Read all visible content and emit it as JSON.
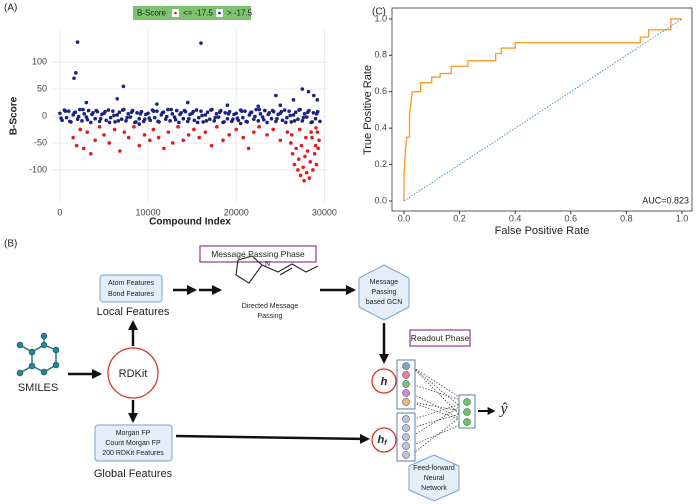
{
  "chart_data": [
    {
      "type": "scatter",
      "panel": "(A)",
      "x_label": "Compound Index",
      "y_label": "B-Score",
      "legend_title": "B-Score",
      "legend": "top",
      "grid": true,
      "xlim": [
        -900,
        30300
      ],
      "ylim": [
        -165,
        165
      ],
      "xticks": [
        0,
        10000,
        20000,
        30000
      ],
      "yticks": [
        -100,
        -50,
        0,
        50,
        100
      ],
      "series": [
        {
          "name": "<= -17.5",
          "color": "#e41a1c",
          "x": [
            1500,
            1900,
            2300,
            2700,
            3100,
            3500,
            4000,
            4500,
            5000,
            5600,
            6200,
            6800,
            7300,
            7800,
            8400,
            9000,
            9600,
            10200,
            10600,
            11200,
            11800,
            12300,
            12800,
            13400,
            14000,
            14600,
            15200,
            15800,
            16500,
            17200,
            17800,
            18500,
            19200,
            20000,
            20800,
            21400,
            22000,
            22600,
            23500,
            24200,
            25000,
            25800,
            26200,
            26400,
            26600,
            26800,
            27000,
            27100,
            27300,
            27400,
            27600,
            27700,
            27800,
            28000,
            28100,
            28300,
            28400,
            28600,
            28700,
            28900,
            29000,
            29100,
            29200,
            29300,
            29400,
            26300,
            27200,
            27900,
            28500,
            29050
          ],
          "values": [
            -40,
            -55,
            -25,
            -60,
            -30,
            -70,
            -45,
            -20,
            -35,
            -50,
            -25,
            -65,
            -30,
            -40,
            -20,
            -55,
            -35,
            -45,
            -25,
            -40,
            -60,
            -30,
            -50,
            -20,
            -45,
            -35,
            -25,
            -40,
            -30,
            -55,
            -20,
            -45,
            -35,
            -25,
            -40,
            -60,
            -30,
            -20,
            -35,
            -25,
            -45,
            -30,
            -50,
            -70,
            -90,
            -60,
            -100,
            -80,
            -110,
            -55,
            -95,
            -120,
            -75,
            -105,
            -65,
            -115,
            -85,
            -40,
            -100,
            -70,
            -55,
            -90,
            -30,
            -60,
            -45,
            -35,
            -25,
            -40,
            -30,
            -22
          ]
        },
        {
          "name": "> -17.5",
          "color": "#1a237e",
          "x": [
            0,
            250,
            500,
            750,
            1000,
            1250,
            1500,
            1750,
            2000,
            2250,
            2500,
            2750,
            3000,
            3250,
            3500,
            3750,
            4000,
            4250,
            4500,
            4750,
            5000,
            5250,
            5500,
            5750,
            6000,
            6250,
            6500,
            6750,
            7000,
            7250,
            7500,
            7750,
            8000,
            8250,
            8500,
            8750,
            9000,
            9250,
            9500,
            9750,
            10000,
            10250,
            10500,
            10750,
            11000,
            11250,
            11500,
            11750,
            12000,
            12250,
            12500,
            12750,
            13000,
            13250,
            13500,
            13750,
            14000,
            14250,
            14500,
            14750,
            15000,
            15250,
            15500,
            15750,
            16000,
            16250,
            16500,
            16750,
            17000,
            17250,
            17500,
            17750,
            18000,
            18250,
            18500,
            18750,
            19000,
            19250,
            19500,
            19750,
            20000,
            20250,
            20500,
            20750,
            21000,
            21250,
            21500,
            21750,
            22000,
            22250,
            22500,
            22750,
            23000,
            23250,
            23500,
            23750,
            24000,
            24250,
            24500,
            24750,
            25000,
            25250,
            25500,
            25750,
            26000,
            26250,
            26500,
            26750,
            27000,
            27250,
            27500,
            27750,
            28000,
            28250,
            28500,
            28750,
            29000,
            29250,
            29500,
            125,
            625,
            1125,
            1625,
            2125,
            2625,
            3125,
            3625,
            4125,
            4625,
            5125,
            5625,
            6125,
            6625,
            7125,
            7625,
            8125,
            8625,
            9125,
            9625,
            10125,
            10625,
            11125,
            11625,
            12125,
            12625,
            13125,
            13625,
            14125,
            14625,
            15125,
            15625,
            16125,
            16625,
            17125,
            17625,
            18125,
            18625,
            19125,
            19625,
            20125,
            20625,
            21125,
            21625,
            22125,
            22625,
            23125,
            23625,
            24125,
            24625,
            25125,
            25625,
            26125,
            26625,
            27125,
            27625,
            28125,
            28625,
            29125,
            1600,
            1800,
            2000,
            16000,
            7200,
            3000,
            6500,
            11000,
            14500,
            19000,
            22500,
            24500,
            26500,
            27500,
            28200,
            28800,
            29200,
            9000,
            20500,
            25000
          ],
          "values": [
            5,
            -8,
            11,
            -3,
            9,
            -11,
            2,
            7,
            -6,
            12,
            -9,
            4,
            -2,
            10,
            -12,
            6,
            -5,
            8,
            -10,
            3,
            5,
            -8,
            11,
            -3,
            9,
            -11,
            2,
            7,
            -6,
            12,
            -9,
            4,
            -2,
            10,
            -12,
            6,
            -5,
            8,
            -10,
            3,
            5,
            -8,
            11,
            -3,
            9,
            -11,
            2,
            7,
            -6,
            12,
            -9,
            4,
            -2,
            10,
            -12,
            6,
            -5,
            8,
            -10,
            3,
            5,
            -8,
            11,
            -3,
            9,
            -11,
            2,
            7,
            -6,
            12,
            -9,
            4,
            -2,
            10,
            -12,
            6,
            -5,
            8,
            -10,
            3,
            5,
            -8,
            11,
            -3,
            9,
            -11,
            2,
            7,
            -6,
            12,
            -9,
            4,
            -2,
            10,
            -12,
            6,
            -5,
            8,
            -10,
            3,
            5,
            -8,
            11,
            -3,
            9,
            -11,
            2,
            7,
            -6,
            12,
            -9,
            4,
            -2,
            10,
            -12,
            6,
            -5,
            8,
            -10,
            -4,
            9,
            -10,
            6,
            -1,
            12,
            -7,
            3,
            10,
            -5,
            8,
            -12,
            1,
            -9,
            11,
            -3,
            7,
            -11,
            4,
            -6,
            -4,
            9,
            -10,
            6,
            -1,
            12,
            -7,
            3,
            10,
            -5,
            8,
            -12,
            1,
            -9,
            11,
            -3,
            7,
            -11,
            4,
            -6,
            -4,
            9,
            -10,
            6,
            -1,
            12,
            -7,
            3,
            10,
            -5,
            8,
            -12,
            1,
            -9,
            11,
            -3,
            7,
            -11,
            4,
            70,
            80,
            137,
            135,
            55,
            25,
            32,
            22,
            25,
            20,
            18,
            38,
            30,
            50,
            45,
            38,
            30,
            -15,
            -14,
            20
          ]
        }
      ]
    },
    {
      "type": "line",
      "panel": "(C)",
      "x_label": "False Positive Rate",
      "y_label": "True Positive Rate",
      "annotation": "AUC=0.823",
      "grid": false,
      "xlim": [
        -0.043,
        1.036
      ],
      "ylim": [
        -0.055,
        1.06
      ],
      "xticks": [
        {
          "value": 0,
          "label": "0.0"
        },
        {
          "value": 0.2,
          "label": "0.2"
        },
        {
          "value": 0.4,
          "label": "0.4"
        },
        {
          "value": 0.6,
          "label": "0.6"
        },
        {
          "value": 0.8,
          "label": "0.8"
        },
        {
          "value": 1,
          "label": "1.0"
        }
      ],
      "yticks": [
        {
          "value": 0,
          "label": "0.0"
        },
        {
          "value": 0.2,
          "label": "0.2"
        },
        {
          "value": 0.4,
          "label": "0.4"
        },
        {
          "value": 0.6,
          "label": "0.6"
        },
        {
          "value": 0.8,
          "label": "0.8"
        },
        {
          "value": 1,
          "label": "1.0"
        }
      ],
      "series": [
        {
          "color": "#f59a23",
          "dash": false,
          "x": [
            0,
            0,
            0.005,
            0.01,
            0.02,
            0.02,
            0.03,
            0.06,
            0.06,
            0.1,
            0.1,
            0.13,
            0.13,
            0.17,
            0.17,
            0.23,
            0.23,
            0.33,
            0.33,
            0.35,
            0.35,
            0.4,
            0.4,
            0.85,
            0.85,
            0.88,
            0.88,
            0.96,
            0.96,
            1
          ],
          "values": [
            0,
            0.13,
            0.27,
            0.35,
            0.35,
            0.47,
            0.6,
            0.6,
            0.65,
            0.65,
            0.68,
            0.68,
            0.7,
            0.7,
            0.74,
            0.74,
            0.77,
            0.77,
            0.81,
            0.81,
            0.84,
            0.84,
            0.87,
            0.87,
            0.9,
            0.9,
            0.94,
            0.94,
            1,
            1
          ]
        },
        {
          "color": "#3b8bc2",
          "dash": true,
          "x": [
            0,
            1
          ],
          "values": [
            0,
            1
          ]
        }
      ]
    }
  ],
  "diagram": {
    "panel": "(B)",
    "message_passing_phase": "Message Passing Phase",
    "local_inputs": [
      "Atom Features",
      "Bond Features"
    ],
    "local_features": "Local Features",
    "molecule_atom": "N",
    "directed_message_passing": [
      "Directed Message",
      "Passing"
    ],
    "gcn": [
      "Message",
      "Passing",
      "based GCN"
    ],
    "smiles": "SMILES",
    "rdkit": "RDKit",
    "global_inputs": [
      "Morgan FP",
      "Count Morgan FP",
      "200 RDKit Features"
    ],
    "global_features": "Global Features",
    "readout_phase": "Readout Phase",
    "h": "h",
    "h_f": {
      "base": "h",
      "subscript": "f"
    },
    "ffnn": [
      "Feed-forward",
      "Neural",
      "Network"
    ],
    "output": "ŷ"
  }
}
